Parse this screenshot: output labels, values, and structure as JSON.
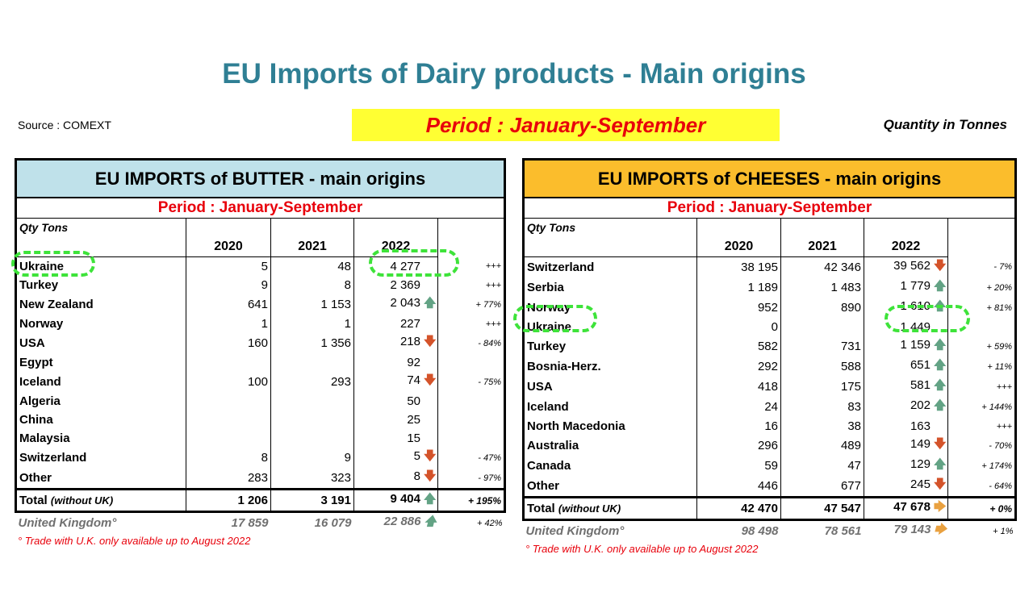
{
  "header": {
    "title": "EU Imports of Dairy products - Main origins",
    "source": "Source : COMEXT",
    "period": "Period : January-September",
    "unit": "Quantity in Tonnes"
  },
  "colors": {
    "title": "#2f7f94",
    "period_banner_bg": "#ffff33",
    "period_text": "#e8000b",
    "butter_header_bg": "#bfe1ea",
    "cheese_header_bg": "#fbbd2c",
    "highlight": "#3ee33a",
    "arrow_up": "#63a385",
    "arrow_down": "#d4532a",
    "arrow_flat": "#e9a140"
  },
  "butter": {
    "title": "EU IMPORTS of BUTTER - main origins",
    "period": "Period : January-September",
    "qty_label": "Qty Tons",
    "years": [
      "2020",
      "2021",
      "2022"
    ],
    "rows": [
      {
        "country": "Ukraine",
        "v2020": "5",
        "v2021": "48",
        "v2022": "4 277",
        "arrow": "",
        "pct": "+++"
      },
      {
        "country": "Turkey",
        "v2020": "9",
        "v2021": "8",
        "v2022": "2 369",
        "arrow": "",
        "pct": "+++"
      },
      {
        "country": "New Zealand",
        "v2020": "641",
        "v2021": "1 153",
        "v2022": "2 043",
        "arrow": "up",
        "pct": "+ 77%"
      },
      {
        "country": "Norway",
        "v2020": "1",
        "v2021": "1",
        "v2022": "227",
        "arrow": "",
        "pct": "+++"
      },
      {
        "country": "USA",
        "v2020": "160",
        "v2021": "1 356",
        "v2022": "218",
        "arrow": "down",
        "pct": "- 84%"
      },
      {
        "country": "Egypt",
        "v2020": "",
        "v2021": "",
        "v2022": "92",
        "arrow": "",
        "pct": ""
      },
      {
        "country": "Iceland",
        "v2020": "100",
        "v2021": "293",
        "v2022": "74",
        "arrow": "down",
        "pct": "- 75%"
      },
      {
        "country": "Algeria",
        "v2020": "",
        "v2021": "",
        "v2022": "50",
        "arrow": "",
        "pct": ""
      },
      {
        "country": "China",
        "v2020": "",
        "v2021": "",
        "v2022": "25",
        "arrow": "",
        "pct": ""
      },
      {
        "country": "Malaysia",
        "v2020": "",
        "v2021": "",
        "v2022": "15",
        "arrow": "",
        "pct": ""
      },
      {
        "country": "Switzerland",
        "v2020": "8",
        "v2021": "9",
        "v2022": "5",
        "arrow": "down",
        "pct": "- 47%"
      },
      {
        "country": "Other",
        "v2020": "283",
        "v2021": "323",
        "v2022": "8",
        "arrow": "down",
        "pct": "- 97%"
      }
    ],
    "total": {
      "label": "Total",
      "label_note": "(without UK)",
      "v2020": "1 206",
      "v2021": "3 191",
      "v2022": "9 404",
      "arrow": "up",
      "pct": "+ 195%"
    },
    "uk": {
      "label": "United Kingdom°",
      "v2020": "17 859",
      "v2021": "16 079",
      "v2022": "22 886",
      "arrow": "up",
      "pct": "+ 42%"
    },
    "note": "° Trade with U.K. only available up to August 2022"
  },
  "cheese": {
    "title": "EU IMPORTS of CHEESES - main origins",
    "period": "Period : January-September",
    "qty_label": "Qty Tons",
    "years": [
      "2020",
      "2021",
      "2022"
    ],
    "rows": [
      {
        "country": "Switzerland",
        "v2020": "38 195",
        "v2021": "42 346",
        "v2022": "39 562",
        "arrow": "down",
        "pct": "- 7%"
      },
      {
        "country": "Serbia",
        "v2020": "1 189",
        "v2021": "1 483",
        "v2022": "1 779",
        "arrow": "up",
        "pct": "+ 20%"
      },
      {
        "country": "Norway",
        "v2020": "952",
        "v2021": "890",
        "v2022": "1 610",
        "arrow": "up",
        "pct": "+ 81%"
      },
      {
        "country": "Ukraine",
        "v2020": "0",
        "v2021": "",
        "v2022": "1 449",
        "arrow": "",
        "pct": ""
      },
      {
        "country": "Turkey",
        "v2020": "582",
        "v2021": "731",
        "v2022": "1 159",
        "arrow": "up",
        "pct": "+ 59%"
      },
      {
        "country": "Bosnia-Herz.",
        "v2020": "292",
        "v2021": "588",
        "v2022": "651",
        "arrow": "up",
        "pct": "+ 11%"
      },
      {
        "country": "USA",
        "v2020": "418",
        "v2021": "175",
        "v2022": "581",
        "arrow": "up",
        "pct": "+++"
      },
      {
        "country": "Iceland",
        "v2020": "24",
        "v2021": "83",
        "v2022": "202",
        "arrow": "up",
        "pct": "+ 144%"
      },
      {
        "country": "North Macedonia",
        "v2020": "16",
        "v2021": "38",
        "v2022": "163",
        "arrow": "",
        "pct": "+++"
      },
      {
        "country": "Australia",
        "v2020": "296",
        "v2021": "489",
        "v2022": "149",
        "arrow": "down",
        "pct": "- 70%"
      },
      {
        "country": "Canada",
        "v2020": "59",
        "v2021": "47",
        "v2022": "129",
        "arrow": "up",
        "pct": "+ 174%"
      },
      {
        "country": "Other",
        "v2020": "446",
        "v2021": "677",
        "v2022": "245",
        "arrow": "down",
        "pct": "- 64%"
      }
    ],
    "total": {
      "label": "Total",
      "label_note": "(without UK)",
      "v2020": "42 470",
      "v2021": "47 547",
      "v2022": "47 678",
      "arrow": "right",
      "pct": "+ 0%"
    },
    "uk": {
      "label": "United Kingdom°",
      "v2020": "98 498",
      "v2021": "78 561",
      "v2022": "79 143",
      "arrow": "right",
      "pct": "+ 1%"
    },
    "note": "° Trade with U.K. only available up to August 2022"
  }
}
